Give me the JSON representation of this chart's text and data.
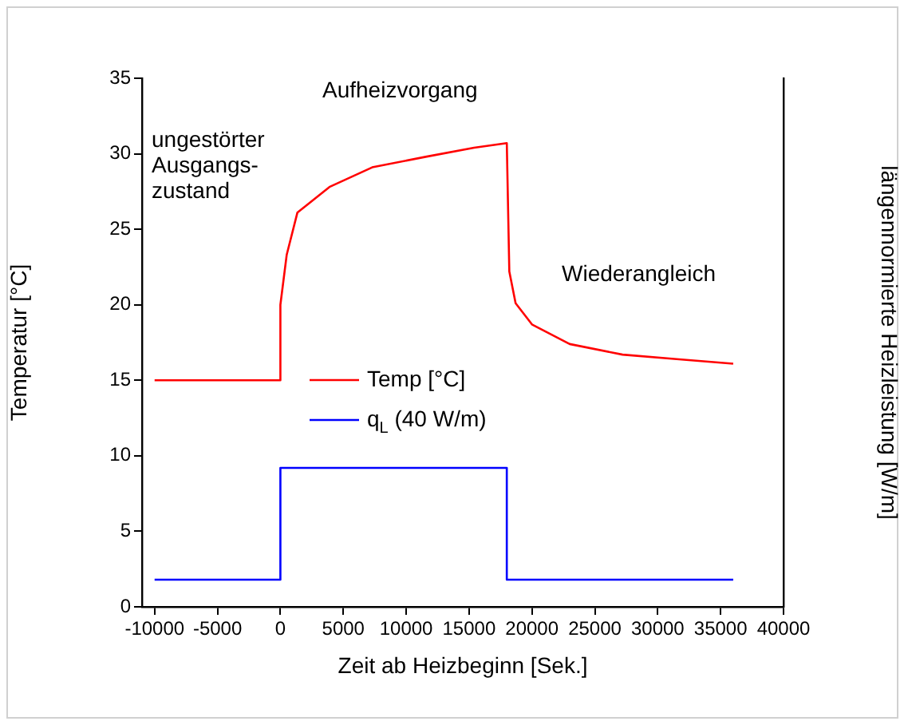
{
  "chart_data": {
    "type": "line",
    "xlabel": "Zeit ab Heizbeginn [Sek.]",
    "ylabel": "Temperatur [°C]",
    "y2label": "längennormierte Heizleistung [W/m]",
    "xlim": [
      -11000,
      40000
    ],
    "xticks": [
      -10000,
      -5000,
      0,
      5000,
      10000,
      15000,
      20000,
      25000,
      30000,
      35000,
      40000
    ],
    "ylim": [
      0,
      35
    ],
    "yticks": [
      0,
      5,
      10,
      15,
      20,
      25,
      30,
      35
    ],
    "tick_labels": "xy",
    "grid": false,
    "legend": "center",
    "marker": "none",
    "line_style": "solid",
    "annotations": [
      "Aufheizvorgang",
      "ungestörter\nAusgangs-\nzustand",
      "Wiederangleich"
    ],
    "series": [
      {
        "name": "Temp [°C]",
        "color": "#ff0000",
        "x": [
          -10000,
          0,
          0,
          500,
          1350,
          3900,
          7300,
          11550,
          15400,
          18000,
          18200,
          18700,
          20000,
          23000,
          27200,
          31500,
          36000
        ],
        "values": [
          15,
          15,
          20,
          23.3,
          26.1,
          27.8,
          29.1,
          29.8,
          30.4,
          30.7,
          22.2,
          20.1,
          18.7,
          17.4,
          16.7,
          16.4,
          16.1
        ]
      },
      {
        "name": "q$_{L}$ (40 W/m)",
        "color": "#0000ff",
        "x": [
          -10000,
          0,
          0,
          18000,
          18000,
          36000
        ],
        "values": [
          1.8,
          1.8,
          9.2,
          9.2,
          1.8,
          1.8
        ]
      }
    ]
  }
}
